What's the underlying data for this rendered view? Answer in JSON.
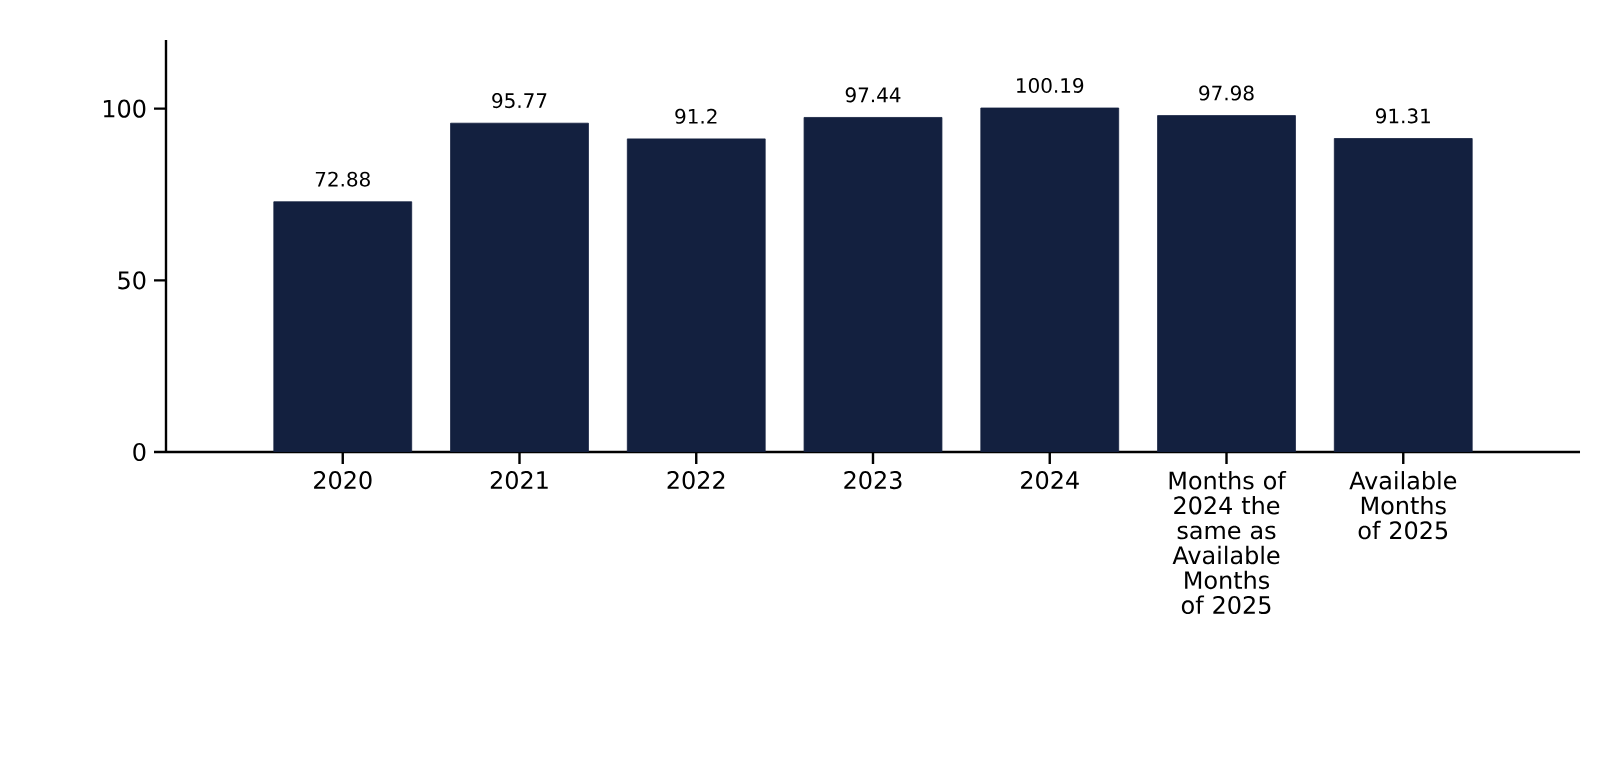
{
  "chart_data": {
    "type": "bar",
    "categories": [
      "2020",
      "2021",
      "2022",
      "2023",
      "2024",
      "Months of 2024 the same as Available Months of 2025",
      "Available Months of 2025"
    ],
    "values": [
      72.88,
      95.77,
      91.2,
      97.44,
      100.19,
      97.98,
      91.31
    ],
    "color": "#13203f",
    "ylim": [
      0,
      120
    ],
    "yticks": [
      0,
      50,
      100
    ],
    "data_labels": true
  }
}
